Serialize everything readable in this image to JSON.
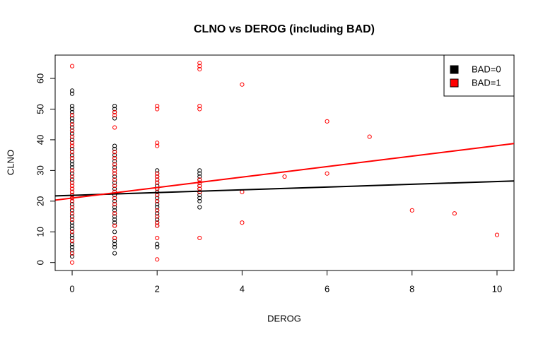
{
  "chart_data": {
    "type": "scatter",
    "title": "CLNO vs DEROG (including BAD)",
    "x_label": "DEROG",
    "y_label": "CLNO",
    "xlim": [
      -0.4,
      10.4
    ],
    "ylim": [
      -2.6,
      67.6
    ],
    "xticks": [
      0,
      2,
      4,
      6,
      8,
      10
    ],
    "yticks": [
      0,
      10,
      20,
      30,
      40,
      50,
      60
    ],
    "legend_position": "top-right",
    "series": [
      {
        "name": "BAD=0",
        "color": "#000000",
        "x": [
          0,
          0,
          0,
          0,
          0,
          0,
          0,
          0,
          0,
          0,
          0,
          0,
          0,
          0,
          0,
          0,
          0,
          0,
          0,
          0,
          0,
          0,
          0,
          0,
          0,
          0,
          0,
          0,
          0,
          0,
          0,
          0,
          0,
          0,
          0,
          0,
          0,
          0,
          0,
          0,
          0,
          0,
          0,
          0,
          0,
          0,
          0,
          0,
          0,
          0,
          0,
          0,
          1,
          1,
          1,
          1,
          1,
          1,
          1,
          1,
          1,
          1,
          1,
          1,
          1,
          1,
          1,
          1,
          1,
          1,
          1,
          1,
          1,
          1,
          1,
          1,
          1,
          1,
          1,
          1,
          1,
          1,
          1,
          1,
          1,
          1,
          1,
          1,
          1,
          2,
          2,
          2,
          2,
          2,
          2,
          2,
          2,
          2,
          2,
          2,
          2,
          2,
          2,
          2,
          2,
          2,
          2,
          2,
          2,
          2,
          3,
          3,
          3,
          3,
          3,
          3,
          3,
          3,
          3,
          3,
          3,
          3
        ],
        "values": [
          2,
          3,
          4,
          5,
          6,
          7,
          8,
          9,
          10,
          11,
          12,
          13,
          14,
          15,
          16,
          17,
          18,
          19,
          20,
          21,
          22,
          23,
          24,
          25,
          26,
          27,
          28,
          29,
          30,
          31,
          32,
          33,
          34,
          35,
          36,
          37,
          38,
          39,
          40,
          41,
          42,
          43,
          44,
          45,
          46,
          47,
          48,
          49,
          50,
          51,
          55,
          56,
          3,
          5,
          6,
          7,
          8,
          10,
          12,
          13,
          14,
          15,
          16,
          17,
          18,
          19,
          20,
          21,
          22,
          23,
          24,
          25,
          26,
          27,
          28,
          29,
          30,
          31,
          32,
          33,
          34,
          35,
          36,
          37,
          38,
          47,
          49,
          50,
          51,
          5,
          6,
          12,
          13,
          14,
          15,
          16,
          17,
          18,
          19,
          20,
          21,
          22,
          23,
          24,
          25,
          26,
          27,
          28,
          29,
          30,
          18,
          20,
          21,
          22,
          23,
          24,
          25,
          26,
          27,
          28,
          29,
          30
        ],
        "fit": {
          "intercept": 21.9,
          "slope": 0.45
        }
      },
      {
        "name": "BAD=1",
        "color": "#ff0000",
        "x": [
          0,
          0,
          0,
          0,
          0,
          0,
          0,
          0,
          0,
          0,
          0,
          0,
          0,
          0,
          0,
          0,
          0,
          0,
          0,
          0,
          0,
          0,
          0,
          0,
          0,
          1,
          1,
          1,
          1,
          1,
          1,
          1,
          1,
          1,
          1,
          1,
          1,
          1,
          1,
          1,
          1,
          2,
          2,
          2,
          2,
          2,
          2,
          2,
          2,
          2,
          2,
          2,
          2,
          2,
          2,
          2,
          2,
          2,
          3,
          3,
          3,
          3,
          3,
          3,
          3,
          3,
          3,
          3,
          3,
          4,
          4,
          4,
          5,
          6,
          6,
          7,
          8,
          9,
          10
        ],
        "values": [
          0,
          3,
          7,
          10,
          14,
          16,
          18,
          20,
          21,
          22,
          23,
          24,
          25,
          26,
          28,
          30,
          34,
          36,
          38,
          39,
          41,
          43,
          45,
          48,
          64,
          8,
          12,
          16,
          19,
          21,
          23,
          25,
          27,
          29,
          30,
          32,
          34,
          36,
          44,
          48,
          49,
          1,
          8,
          12,
          13,
          15,
          17,
          20,
          22,
          24,
          26,
          27,
          28,
          29,
          38,
          39,
          50,
          51,
          8,
          23,
          24,
          25,
          26,
          27,
          50,
          51,
          63,
          64,
          65,
          13,
          23,
          58,
          28,
          29,
          46,
          41,
          17,
          16,
          9
        ],
        "fit": {
          "intercept": 21.0,
          "slope": 1.71
        }
      }
    ]
  }
}
